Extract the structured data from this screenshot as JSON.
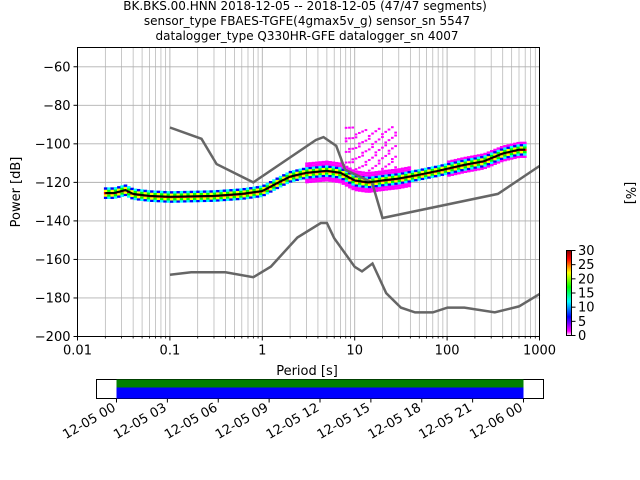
{
  "chart_data": [
    {
      "type": "heatmap",
      "title_lines": [
        "BK.BKS.00.HNN   2018-12-05 -- 2018-12-05  (47/47 segments)",
        "sensor_type FBAES-TGFE(4gmax5v_g) sensor_sn 5547",
        "datalogger_type Q330HR-GFE datalogger_sn 4007"
      ],
      "xlabel": "Period [s]",
      "ylabel": "Power [dB]",
      "xscale": "log",
      "xlim": [
        0.01,
        1000
      ],
      "ylim": [
        -200,
        -50
      ],
      "x_ticks": [
        0.01,
        0.1,
        1,
        10,
        100,
        1000
      ],
      "x_tick_labels": [
        "0.01",
        "0.1",
        "1",
        "10",
        "100",
        "1000"
      ],
      "y_ticks": [
        -200,
        -180,
        -160,
        -140,
        -120,
        -100,
        -80,
        -60
      ],
      "y_tick_labels": [
        "−200",
        "−180",
        "−160",
        "−140",
        "−120",
        "−100",
        "−80",
        "−60"
      ],
      "grid": true,
      "colorbar": {
        "label": "[%]",
        "ticks": [
          0,
          5,
          10,
          15,
          20,
          25,
          30
        ],
        "tick_labels": [
          "0",
          "5",
          "10",
          "15",
          "20",
          "25",
          "30"
        ],
        "range": [
          0,
          30
        ],
        "colormap": [
          "#ffffff",
          "#ff00ff",
          "#0000ff",
          "#00ffff",
          "#00ff00",
          "#ffff00",
          "#ff0000",
          "#8b0000"
        ]
      },
      "noise_models": [
        {
          "name": "NHNM",
          "color": "#666666",
          "points": [
            [
              0.1,
              -91.5
            ],
            [
              0.22,
              -97.4
            ],
            [
              0.32,
              -110.5
            ],
            [
              0.8,
              -120
            ],
            [
              3.8,
              -98
            ],
            [
              4.6,
              -96.5
            ],
            [
              6.3,
              -101
            ],
            [
              7.9,
              -113.5
            ],
            [
              15.4,
              -120
            ],
            [
              20,
              -138.5
            ],
            [
              354.8,
              -126
            ],
            [
              1000,
              -111.5
            ]
          ]
        },
        {
          "name": "NLNM",
          "color": "#666666",
          "points": [
            [
              0.1,
              -168
            ],
            [
              0.17,
              -166.7
            ],
            [
              0.4,
              -166.7
            ],
            [
              0.8,
              -169.2
            ],
            [
              1.24,
              -163.7
            ],
            [
              2.4,
              -148.6
            ],
            [
              4.3,
              -141.1
            ],
            [
              5,
              -141.1
            ],
            [
              6,
              -149
            ],
            [
              10,
              -163.8
            ],
            [
              12,
              -166.2
            ],
            [
              15.6,
              -162.1
            ],
            [
              21.9,
              -177.5
            ],
            [
              31.6,
              -185
            ],
            [
              45,
              -187.5
            ],
            [
              70,
              -187.5
            ],
            [
              101,
              -185
            ],
            [
              154,
              -185
            ],
            [
              328,
              -187.5
            ],
            [
              600,
              -184.4
            ],
            [
              1000,
              -178
            ]
          ]
        }
      ],
      "mode_curve": [
        [
          0.02,
          -125.5
        ],
        [
          0.025,
          -125.5
        ],
        [
          0.03,
          -124.5
        ],
        [
          0.033,
          -124
        ],
        [
          0.04,
          -126
        ],
        [
          0.06,
          -127
        ],
        [
          0.1,
          -127.5
        ],
        [
          0.3,
          -127
        ],
        [
          0.6,
          -126
        ],
        [
          1,
          -124.5
        ],
        [
          1.5,
          -120
        ],
        [
          2,
          -117
        ],
        [
          3,
          -115
        ],
        [
          5,
          -114
        ],
        [
          7,
          -115
        ],
        [
          10,
          -119
        ],
        [
          14,
          -120
        ],
        [
          20,
          -119
        ],
        [
          30,
          -118
        ],
        [
          50,
          -116
        ],
        [
          80,
          -114
        ],
        [
          150,
          -111
        ],
        [
          250,
          -109
        ],
        [
          400,
          -105
        ],
        [
          600,
          -103
        ],
        [
          700,
          -103
        ]
      ],
      "segments_panel": {
        "time_ticks": [
          "12-05 00",
          "12-05 03",
          "12-05 06",
          "12-05 09",
          "12-05 12",
          "12-05 15",
          "12-05 18",
          "12-05 21",
          "12-06 00"
        ],
        "start_hour": 0,
        "end_hour": 24,
        "data_color": "#008000",
        "psd_color": "#0000ff"
      }
    }
  ]
}
